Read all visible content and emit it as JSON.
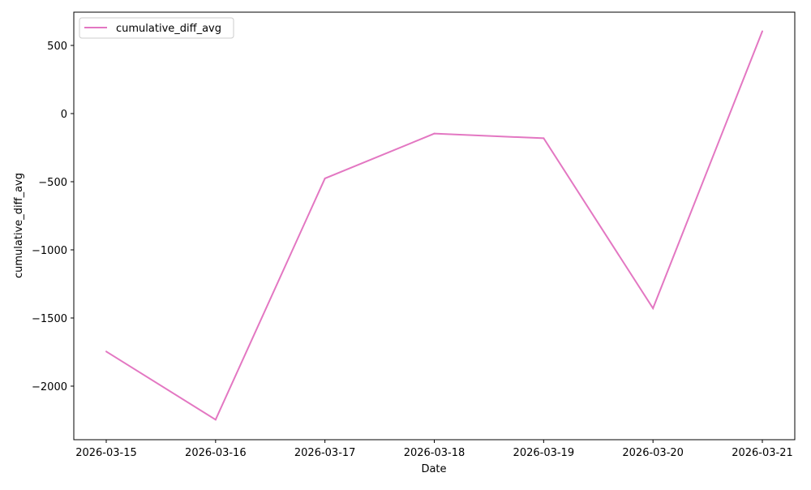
{
  "chart_data": {
    "type": "line",
    "title": "",
    "xlabel": "Date",
    "ylabel": "cumulative_diff_avg",
    "x": [
      "2026-03-15",
      "2026-03-16",
      "2026-03-17",
      "2026-03-18",
      "2026-03-19",
      "2026-03-20",
      "2026-03-21"
    ],
    "series": [
      {
        "name": "cumulative_diff_avg",
        "color": "#e377c2",
        "values": [
          -1746,
          -2246,
          -476,
          -147,
          -181,
          -1429,
          604
        ]
      }
    ],
    "yticks": [
      500,
      0,
      -500,
      -1000,
      -1500,
      -2000
    ],
    "ytick_labels": [
      "500",
      "0",
      "−500",
      "−1000",
      "−1500",
      "−2000"
    ],
    "ylim": [
      -2393,
      744
    ],
    "grid": false,
    "legend": "upper-left"
  }
}
